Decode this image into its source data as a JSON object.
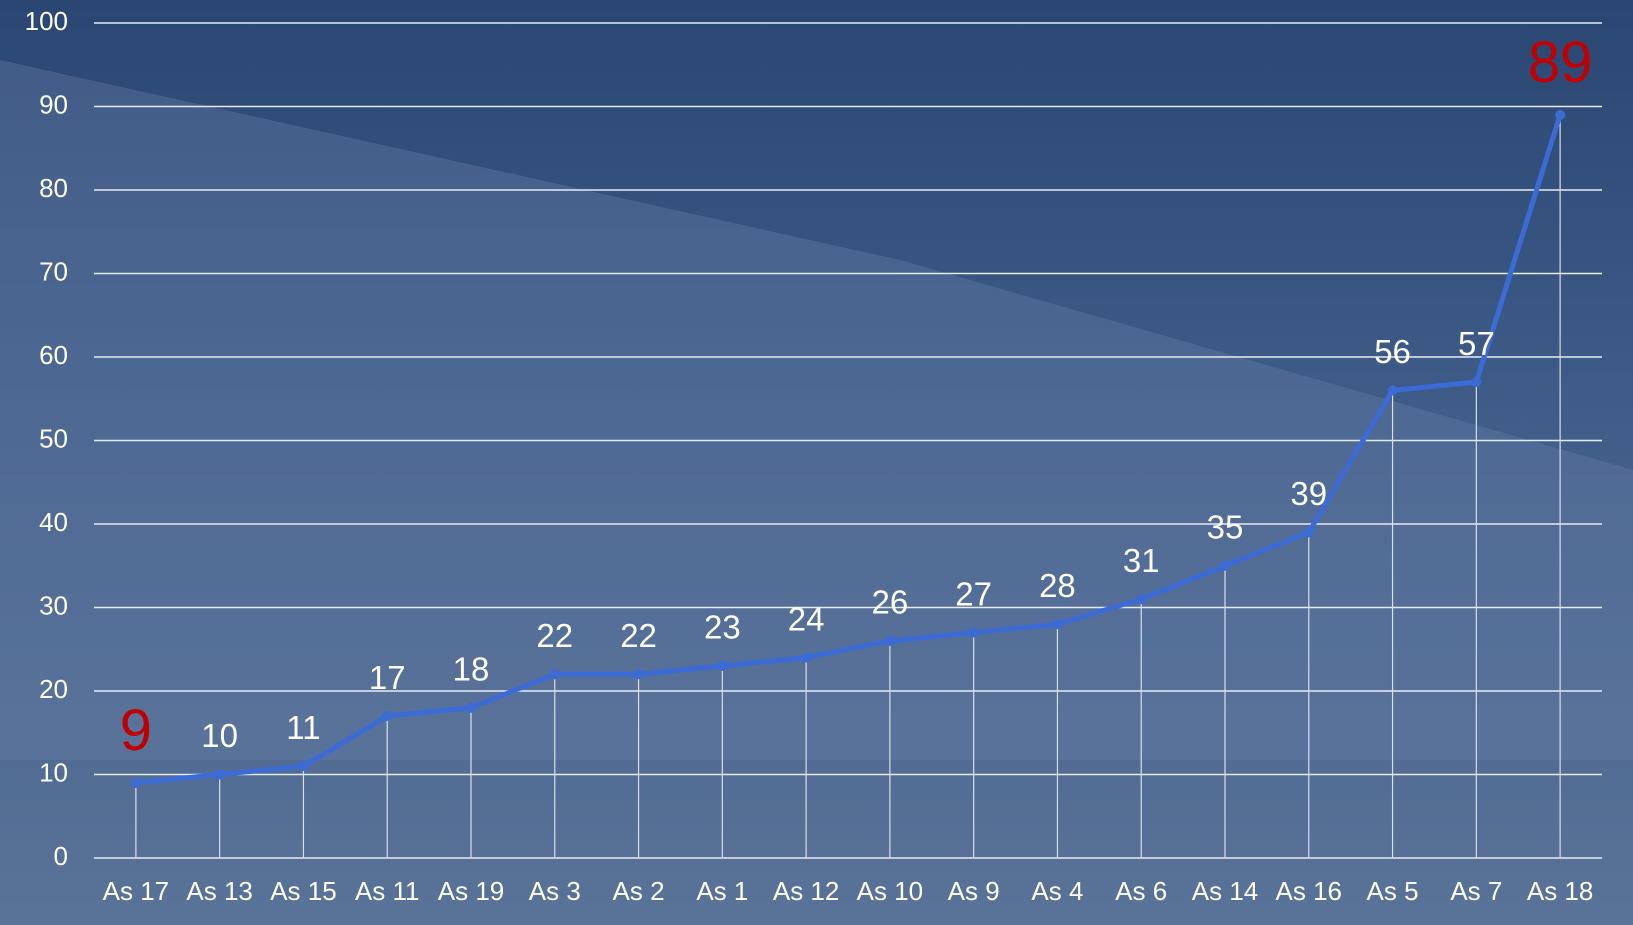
{
  "chart_data": {
    "type": "line",
    "categories": [
      "As 17",
      "As 13",
      "As 15",
      "As 11",
      "As 19",
      "As 3",
      "As 2",
      "As 1",
      "As 12",
      "As 10",
      "As 9",
      "As 4",
      "As 6",
      "As 14",
      "As 16",
      "As 5",
      "As 7",
      "As 18"
    ],
    "values": [
      9,
      10,
      11,
      17,
      18,
      22,
      22,
      23,
      24,
      26,
      27,
      28,
      31,
      35,
      39,
      56,
      57,
      89
    ],
    "color": "#3d6bd6",
    "label_colors": [
      "#c00000",
      "#ffffff",
      "#ffffff",
      "#ffffff",
      "#ffffff",
      "#ffffff",
      "#ffffff",
      "#ffffff",
      "#ffffff",
      "#ffffff",
      "#ffffff",
      "#ffffff",
      "#ffffff",
      "#ffffff",
      "#ffffff",
      "#ffffff",
      "#ffffff",
      "#c00000"
    ],
    "ylim": [
      0,
      100
    ],
    "yticks": [
      0,
      10,
      20,
      30,
      40,
      50,
      60,
      70,
      80,
      90,
      100
    ],
    "grid": true,
    "drop_lines": true
  }
}
